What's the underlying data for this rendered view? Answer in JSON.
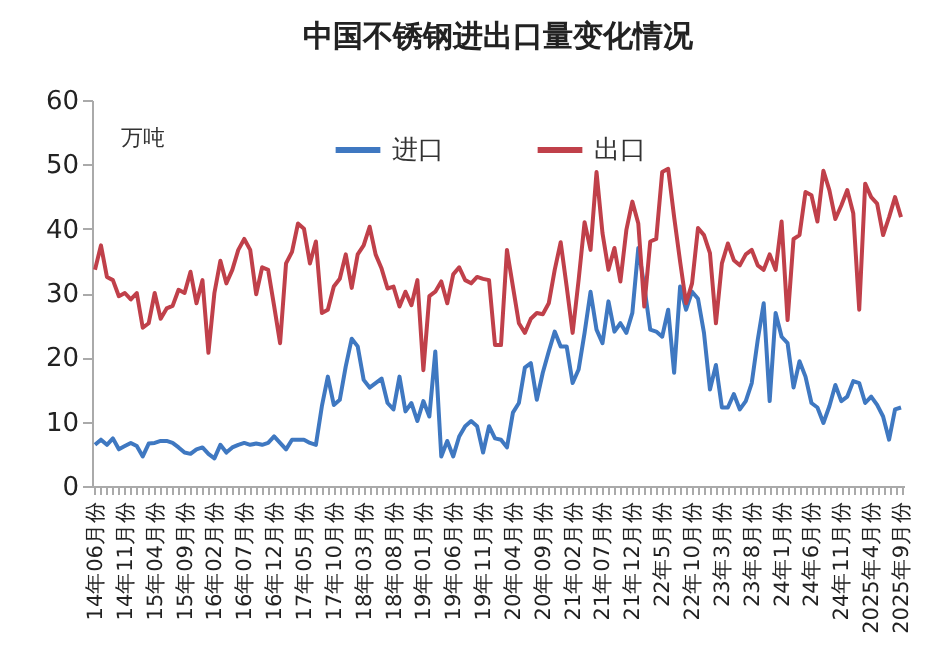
{
  "chart_data": {
    "type": "line",
    "title": "中国不锈钢进出口量变化情况",
    "ylabel": "万吨",
    "categories": [
      "14年06月份",
      null,
      null,
      null,
      null,
      "14年11月份",
      null,
      null,
      null,
      null,
      "15年04月份",
      null,
      null,
      null,
      null,
      "15年09月份",
      null,
      null,
      null,
      null,
      "16年02月份",
      null,
      null,
      null,
      null,
      "16年07月份",
      null,
      null,
      null,
      null,
      "16年12月份",
      null,
      null,
      null,
      null,
      "17年05月份",
      null,
      null,
      null,
      null,
      "17年10月份",
      null,
      null,
      null,
      null,
      "18年03月份",
      null,
      null,
      null,
      null,
      "18年08月份",
      null,
      null,
      null,
      null,
      "19年01月份",
      null,
      null,
      null,
      null,
      "19年06月份",
      null,
      null,
      null,
      null,
      "19年11月份",
      null,
      null,
      null,
      null,
      "20年04月份",
      null,
      null,
      null,
      null,
      "20年09月份",
      null,
      null,
      null,
      null,
      "21年02月份",
      null,
      null,
      null,
      null,
      "21年07月份",
      null,
      null,
      null,
      null,
      "21年12月份",
      null,
      null,
      null,
      null,
      "22年5月份",
      null,
      null,
      null,
      null,
      "22年10月份",
      null,
      null,
      null,
      null,
      "23年3月份",
      null,
      null,
      null,
      null,
      "23年8月份",
      null,
      null,
      null,
      null,
      "24年1月份",
      null,
      null,
      null,
      null,
      "24年6月份",
      null,
      null,
      null,
      null,
      "24年11月份",
      null,
      null,
      null,
      null,
      "2025年4月份",
      null,
      null,
      null,
      null,
      "2025年9月份"
    ],
    "series": [
      {
        "name": "进口",
        "color": "#3f78c1",
        "values": [
          6.4,
          7.2,
          6.4,
          7.4,
          5.7,
          6.2,
          6.7,
          6.2,
          4.6,
          6.6,
          6.7,
          7,
          7,
          6.7,
          6,
          5.2,
          5,
          5.7,
          6,
          5,
          4.3,
          6.4,
          5.2,
          6,
          6.4,
          6.7,
          6.4,
          6.6,
          6.4,
          6.7,
          7.7,
          6.7,
          5.7,
          7.2,
          7.2,
          7.2,
          6.7,
          6.4,
          12.4,
          17,
          12.6,
          13.4,
          18.6,
          22.9,
          21.7,
          16.5,
          15.3,
          16,
          16.7,
          12.9,
          11.9,
          17,
          11.6,
          12.9,
          10.1,
          13.2,
          10.8,
          20.9,
          4.6,
          7,
          4.6,
          7.7,
          9.3,
          10.1,
          9.3,
          5.2,
          9.3,
          7.4,
          7.2,
          6,
          11.4,
          12.9,
          18.4,
          19.1,
          13.4,
          17.6,
          20.9,
          24,
          21.7,
          21.7,
          16,
          18.1,
          23.8,
          30.2,
          24.3,
          22.2,
          28.7,
          24,
          25.3,
          23.8,
          26.9,
          37,
          31,
          24.3,
          24,
          23.2,
          27.4,
          17.6,
          31,
          27.4,
          30.2,
          29.1,
          23.8,
          15,
          18.8,
          12.2,
          12.2,
          14.3,
          11.9,
          13.2,
          16,
          22.7,
          28.4,
          13.2,
          26.9,
          23.2,
          22.2,
          15.3,
          19.4,
          17,
          12.9,
          12.2,
          9.8,
          12.4,
          15.7,
          13.2,
          13.9,
          16.3,
          16,
          12.9,
          13.9,
          12.6,
          10.8,
          7.2,
          11.9,
          12.2
        ]
      },
      {
        "name": "出口",
        "color": "#c0404a",
        "values": [
          33.6,
          37.4,
          32.5,
          32,
          29.5,
          30,
          29,
          30,
          24.6,
          25.3,
          30,
          26,
          27.6,
          28,
          30.5,
          30,
          33.3,
          28.4,
          32,
          20.7,
          30,
          35,
          31.5,
          33.6,
          36.7,
          38.4,
          36.7,
          29.8,
          34,
          33.6,
          28,
          22.2,
          34.6,
          36.4,
          40.8,
          40,
          34.6,
          38,
          26.9,
          27.4,
          31,
          32.2,
          36,
          30.8,
          36,
          37.4,
          40.3,
          36,
          33.8,
          30.7,
          31,
          27.9,
          30.2,
          28.1,
          32,
          18,
          29.5,
          30.2,
          31.8,
          28.4,
          32.9,
          34,
          32,
          31.5,
          32.5,
          32.2,
          32,
          21.9,
          21.9,
          36.7,
          31,
          25.3,
          23.8,
          26,
          26.9,
          26.7,
          28.4,
          33.6,
          37.9,
          31,
          23.8,
          32,
          41,
          36.7,
          48.8,
          39.3,
          33.6,
          37,
          31.8,
          39.8,
          44.2,
          40.8,
          27.9,
          38,
          38.4,
          48.8,
          49.3,
          41.8,
          34.9,
          28.4,
          31.5,
          40.1,
          39,
          36.2,
          25.3,
          34.6,
          37.7,
          35.1,
          34.3,
          36,
          36.7,
          34.3,
          33.6,
          36,
          33.6,
          41.1,
          25.8,
          38.4,
          39,
          45.7,
          45.2,
          41.1,
          49,
          46,
          41.5,
          43.6,
          46,
          42.4,
          27.4,
          47,
          44.9,
          43.9,
          39,
          41.8,
          44.9,
          41.8
        ]
      }
    ],
    "ylim": [
      0,
      60
    ],
    "yticks": [
      0,
      10,
      20,
      30,
      40,
      50,
      60
    ],
    "legend": "top"
  }
}
